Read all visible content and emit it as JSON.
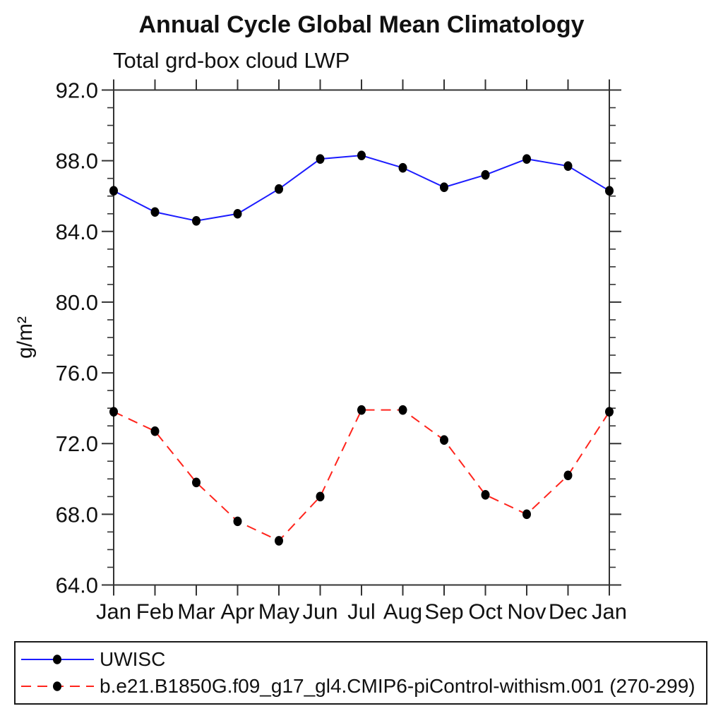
{
  "page": {
    "background": "#ffffff"
  },
  "chart_data": {
    "type": "line",
    "title": "Annual Cycle Global Mean Climatology",
    "subtitle": "Total grd-box cloud LWP",
    "ylabel": "g/m²",
    "xlabel": "",
    "categories": [
      "Jan",
      "Feb",
      "Mar",
      "Apr",
      "May",
      "Jun",
      "Jul",
      "Aug",
      "Sep",
      "Oct",
      "Nov",
      "Dec",
      "Jan"
    ],
    "ylim": [
      64.0,
      92.0
    ],
    "yticks": [
      64.0,
      68.0,
      72.0,
      76.0,
      80.0,
      84.0,
      88.0,
      92.0
    ],
    "ytick_labels": [
      "64.0",
      "68.0",
      "72.0",
      "76.0",
      "80.0",
      "84.0",
      "88.0",
      "92.0"
    ],
    "minor_tick_interval": 1.0,
    "grid": false,
    "legend_position": "bottom",
    "colors": {
      "axis": "#333333",
      "text": "#111111",
      "marker": "#000000"
    },
    "series": [
      {
        "name": "UWISC",
        "color": "#1c1cff",
        "line_style": "solid",
        "marker": "filled-circle",
        "marker_color": "#000000",
        "values": [
          86.3,
          85.1,
          84.6,
          85.0,
          86.4,
          88.1,
          88.3,
          87.6,
          86.5,
          87.2,
          88.1,
          87.7,
          86.3
        ]
      },
      {
        "name": "b.e21.B1850G.f09_g17_gl4.CMIP6-piControl-withism.001 (270-299)",
        "color": "#ff241c",
        "line_style": "dashed",
        "marker": "filled-circle",
        "marker_color": "#000000",
        "values": [
          73.8,
          72.7,
          69.8,
          67.6,
          66.5,
          69.0,
          73.9,
          73.9,
          72.2,
          69.1,
          68.0,
          70.2,
          73.8
        ]
      }
    ]
  }
}
